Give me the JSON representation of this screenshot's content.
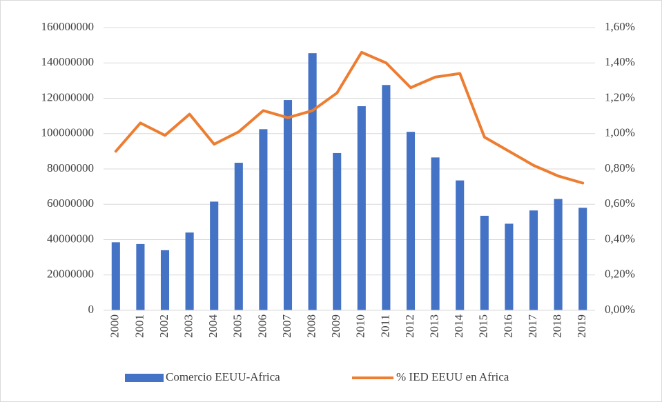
{
  "chart_data": {
    "type": "bar_line",
    "categories": [
      "2000",
      "2001",
      "2002",
      "2003",
      "2004",
      "2005",
      "2006",
      "2007",
      "2008",
      "2009",
      "2010",
      "2011",
      "2012",
      "2013",
      "2014",
      "2015",
      "2016",
      "2017",
      "2018",
      "2019"
    ],
    "series": [
      {
        "name": "Comercio EEUU-Africa",
        "color": "#4472c4",
        "type": "bar",
        "axis": "y",
        "values": [
          38500000,
          37500000,
          34000000,
          44000000,
          61500000,
          83500000,
          102500000,
          119000000,
          145500000,
          89000000,
          115500000,
          127500000,
          101000000,
          86500000,
          73500000,
          53500000,
          49000000,
          56500000,
          63000000,
          58000000
        ]
      },
      {
        "name": "% IED EEUU en Africa",
        "color": "#ed7d31",
        "type": "line",
        "axis": "y2",
        "values": [
          0.9,
          1.06,
          0.99,
          1.11,
          0.94,
          1.01,
          1.13,
          1.09,
          1.13,
          1.23,
          1.46,
          1.4,
          1.26,
          1.32,
          1.34,
          0.98,
          0.9,
          0.82,
          0.76,
          0.72
        ]
      }
    ],
    "ylim": [
      0,
      160000000
    ],
    "yticks": [
      0,
      20000000,
      40000000,
      60000000,
      80000000,
      100000000,
      120000000,
      140000000,
      160000000
    ],
    "y2lim": [
      0,
      1.6
    ],
    "y2ticks": [
      {
        "value": 0,
        "label": "0,00%"
      },
      {
        "value": 0.2,
        "label": "0,20%"
      },
      {
        "value": 0.4,
        "label": "0,40%"
      },
      {
        "value": 0.6,
        "label": "0,60%"
      },
      {
        "value": 0.8,
        "label": "0,80%"
      },
      {
        "value": 1.0,
        "label": "1,00%"
      },
      {
        "value": 1.2,
        "label": "1,20%"
      },
      {
        "value": 1.4,
        "label": "1,40%"
      },
      {
        "value": 1.6,
        "label": "1,60%"
      }
    ],
    "grid": true,
    "legend": "bottom"
  }
}
